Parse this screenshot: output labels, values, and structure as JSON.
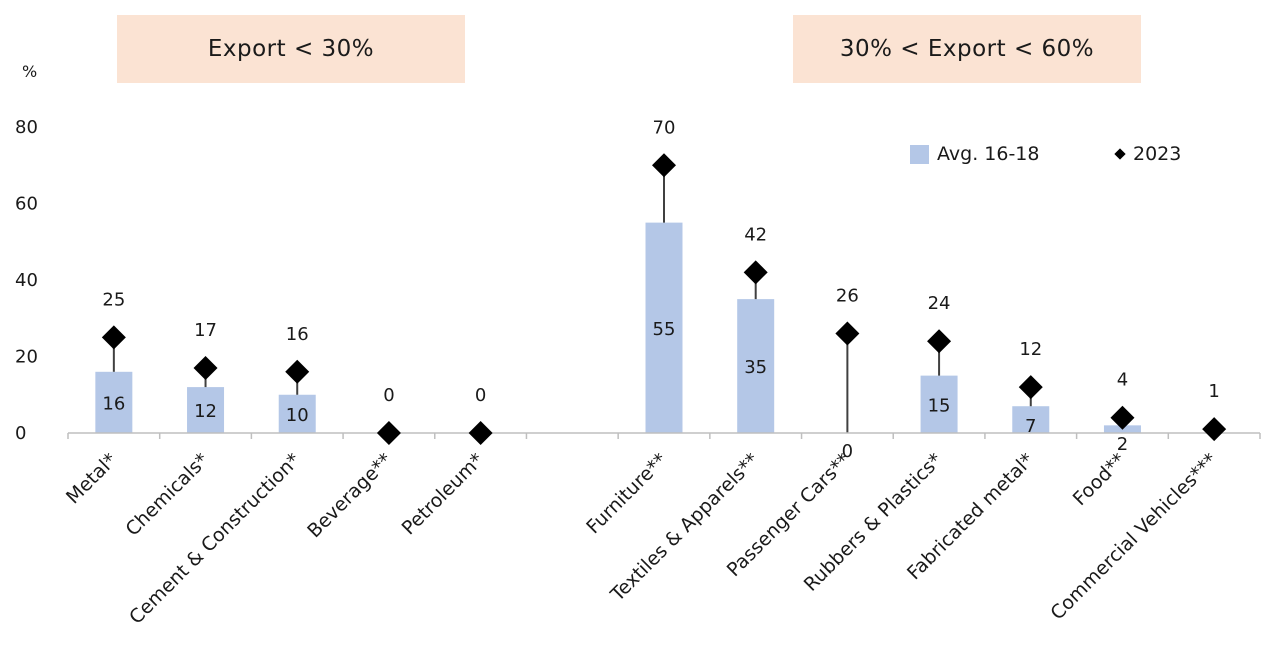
{
  "groups": [
    {
      "label": "Export < 30%"
    },
    {
      "label": "30% < Export < 60%"
    }
  ],
  "legend": {
    "avg": "Avg. 16-18",
    "y2023": "2023"
  },
  "colors": {
    "bar": "#b4c7e7",
    "marker": "#000000",
    "group_box": "#fbe3d3"
  },
  "chart_data": {
    "type": "bar",
    "ylabel": "%",
    "ylim": [
      0,
      80
    ],
    "yticks": [
      0,
      20,
      40,
      60,
      80
    ],
    "categories": [
      "Metal*",
      "Chemicals*",
      "Cement & Construction*",
      "Beverage**",
      "Petroleum*",
      "",
      "Furniture**",
      "Textiles & Apparels**",
      "Passenger Cars**",
      "Rubbers & Plastics*",
      "Fabricated metal*",
      "Food**",
      "Commercial Vehicles***"
    ],
    "series": [
      {
        "name": "Avg. 16-18",
        "type": "bar",
        "values": [
          16,
          12,
          10,
          null,
          null,
          null,
          55,
          35,
          0,
          15,
          7,
          2,
          null
        ]
      },
      {
        "name": "2023",
        "type": "scatter",
        "marker": "diamond",
        "values": [
          25,
          17,
          16,
          0,
          0,
          null,
          70,
          42,
          26,
          24,
          12,
          4,
          1
        ]
      }
    ],
    "legend_position": "top-right"
  }
}
